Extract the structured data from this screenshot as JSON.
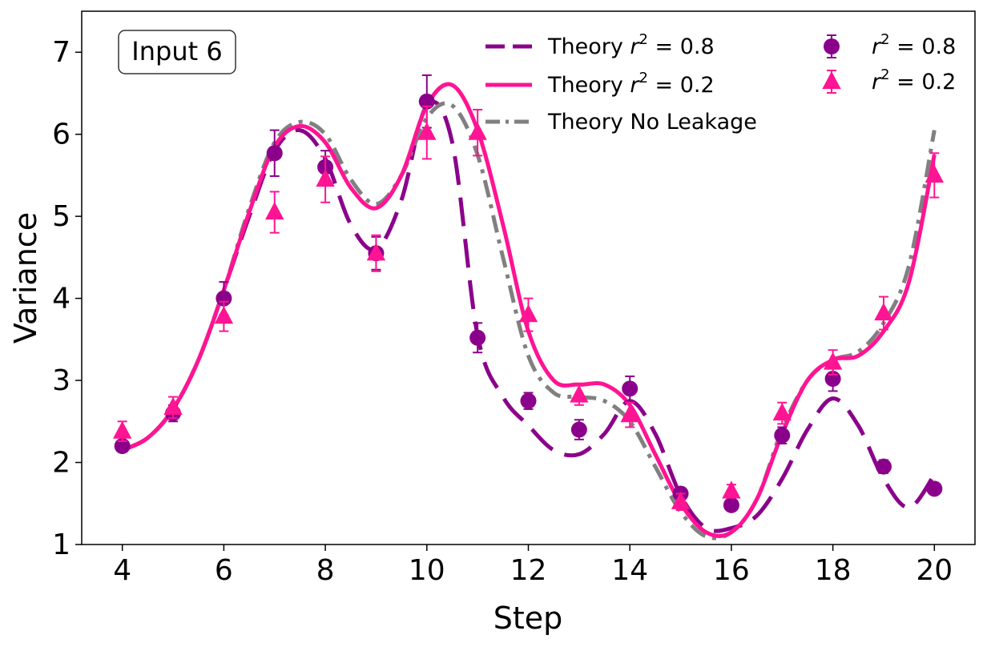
{
  "chart_data": {
    "type": "line",
    "title": "",
    "annotation": "Input 6",
    "xlabel": "Step",
    "ylabel": "Variance",
    "xlim": [
      3.2,
      20.8
    ],
    "ylim": [
      1,
      7.5
    ],
    "xticks": [
      4,
      6,
      8,
      10,
      12,
      14,
      16,
      18,
      20
    ],
    "yticks": [
      1,
      2,
      3,
      4,
      5,
      6,
      7
    ],
    "legend_position": "top-right",
    "colors": {
      "purple": "#8b008b",
      "pink": "#ff1493",
      "gray": "#808080"
    },
    "series": [
      {
        "name": "Theory r²=0.8",
        "legend_prefix": "Theory ",
        "legend_var": "r",
        "legend_sup": "2",
        "legend_suffix": " = 0.8",
        "kind": "line",
        "style": "dashed",
        "color": "#8b008b",
        "x": [
          4,
          4.5,
          5,
          5.5,
          6,
          6.5,
          7,
          7.5,
          8,
          8.5,
          9,
          9.5,
          10,
          10.5,
          11,
          11.5,
          12,
          12.5,
          13,
          13.5,
          14,
          14.5,
          15,
          15.5,
          16,
          16.5,
          17,
          17.5,
          18,
          18.5,
          19,
          19.5,
          20
        ],
        "y": [
          2.15,
          2.3,
          2.65,
          3.25,
          4.1,
          5.0,
          5.8,
          6.05,
          5.7,
          4.9,
          4.6,
          5.2,
          6.35,
          5.9,
          3.55,
          2.8,
          2.45,
          2.15,
          2.1,
          2.35,
          2.75,
          2.35,
          1.6,
          1.2,
          1.2,
          1.35,
          1.8,
          2.4,
          2.78,
          2.45,
          1.8,
          1.45,
          1.85
        ]
      },
      {
        "name": "Theory r²=0.2",
        "legend_prefix": "Theory ",
        "legend_var": "r",
        "legend_sup": "2",
        "legend_suffix": " = 0.2",
        "kind": "line",
        "style": "solid",
        "color": "#ff1493",
        "x": [
          4,
          4.5,
          5,
          5.5,
          6,
          6.5,
          7,
          7.5,
          8,
          8.5,
          9,
          9.5,
          10,
          10.5,
          11,
          11.5,
          12,
          12.5,
          13,
          13.5,
          14,
          14.5,
          15,
          15.5,
          16,
          16.5,
          17,
          17.5,
          18,
          18.5,
          19,
          19.5,
          20
        ],
        "y": [
          2.15,
          2.3,
          2.65,
          3.25,
          4.1,
          5.05,
          5.85,
          6.1,
          5.9,
          5.35,
          5.1,
          5.5,
          6.35,
          6.6,
          6.05,
          4.9,
          3.6,
          3.0,
          2.95,
          2.95,
          2.7,
          2.1,
          1.5,
          1.15,
          1.15,
          1.55,
          2.35,
          3.0,
          3.25,
          3.3,
          3.6,
          4.2,
          5.75
        ]
      },
      {
        "name": "Theory No Leakage",
        "legend_prefix": "Theory No Leakage",
        "legend_var": "",
        "legend_sup": "",
        "legend_suffix": "",
        "kind": "line",
        "style": "dashdot",
        "color": "#808080",
        "x": [
          4,
          4.5,
          5,
          5.5,
          6,
          6.5,
          7,
          7.5,
          8,
          8.5,
          9,
          9.5,
          10,
          10.5,
          11,
          11.5,
          12,
          12.5,
          13,
          13.5,
          14,
          14.5,
          15,
          15.5,
          16,
          16.5,
          17,
          17.5,
          18,
          18.5,
          19,
          19.5,
          20
        ],
        "y": [
          2.15,
          2.3,
          2.65,
          3.25,
          4.1,
          5.1,
          5.9,
          6.15,
          6.0,
          5.45,
          5.15,
          5.5,
          6.2,
          6.35,
          5.75,
          4.5,
          3.3,
          2.85,
          2.8,
          2.75,
          2.5,
          1.95,
          1.4,
          1.1,
          1.15,
          1.55,
          2.4,
          3.0,
          3.25,
          3.35,
          3.7,
          4.4,
          6.05
        ]
      },
      {
        "name": "r²=0.8",
        "legend_prefix": "",
        "legend_var": "r",
        "legend_sup": "2",
        "legend_suffix": " = 0.8",
        "kind": "scatter",
        "marker": "circle",
        "color": "#8b008b",
        "x": [
          4,
          5,
          6,
          7,
          8,
          9,
          10,
          11,
          12,
          13,
          14,
          15,
          16,
          17,
          18,
          19,
          20
        ],
        "y": [
          2.2,
          2.6,
          4.0,
          5.77,
          5.6,
          4.55,
          6.4,
          3.52,
          2.75,
          2.4,
          2.9,
          1.62,
          1.48,
          2.33,
          3.02,
          1.95,
          1.68
        ],
        "err": [
          0.07,
          0.1,
          0.2,
          0.28,
          0.2,
          0.2,
          0.32,
          0.18,
          0.1,
          0.12,
          0.15,
          0.07,
          0.06,
          0.1,
          0.15,
          0.08,
          0.06
        ]
      },
      {
        "name": "r²=0.2",
        "legend_prefix": "",
        "legend_var": "r",
        "legend_sup": "2",
        "legend_suffix": " = 0.2",
        "kind": "scatter",
        "marker": "triangle",
        "color": "#ff1493",
        "x": [
          4,
          5,
          6,
          7,
          8,
          9,
          10,
          11,
          12,
          13,
          14,
          15,
          16,
          17,
          18,
          19,
          20
        ],
        "y": [
          2.38,
          2.67,
          3.78,
          5.05,
          5.45,
          4.55,
          6.02,
          6.02,
          3.8,
          2.82,
          2.58,
          1.52,
          1.65,
          2.6,
          3.22,
          3.82,
          5.5
        ],
        "err": [
          0.12,
          0.13,
          0.18,
          0.25,
          0.28,
          0.22,
          0.32,
          0.28,
          0.2,
          0.12,
          0.15,
          0.1,
          0.08,
          0.13,
          0.15,
          0.2,
          0.27
        ]
      }
    ]
  }
}
